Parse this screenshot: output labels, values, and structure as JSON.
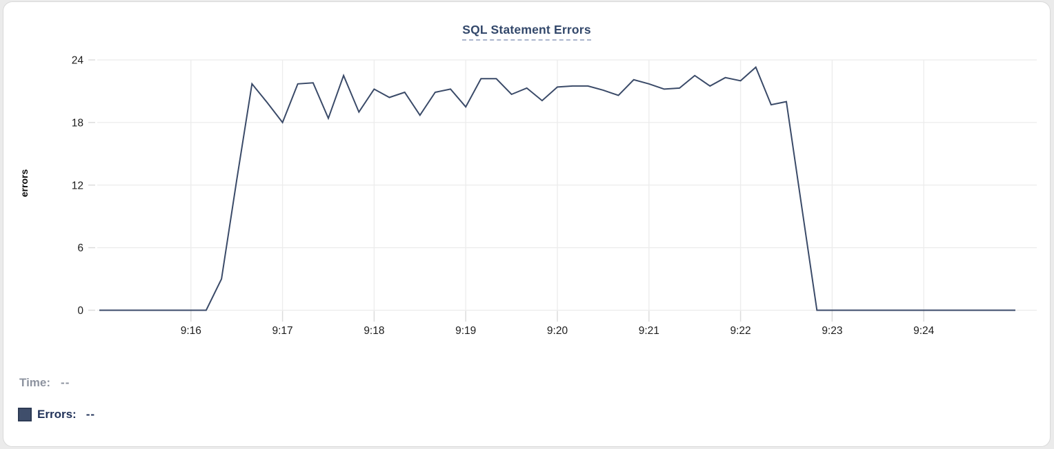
{
  "chart_data": {
    "type": "line",
    "title": "SQL Statement Errors",
    "xlabel": "",
    "ylabel": "errors",
    "ylim": [
      0,
      24
    ],
    "y_ticks": [
      0,
      6,
      12,
      18,
      24
    ],
    "x_tick_labels": [
      "9:16",
      "9:17",
      "9:18",
      "9:19",
      "9:20",
      "9:21",
      "9:22",
      "9:23",
      "9:24"
    ],
    "x_start_time": "9:15:00",
    "x_end_time": "9:25:00",
    "interval_seconds": 10,
    "grid": true,
    "legend_position": "bottom-left",
    "line_color": "#3a4a68",
    "series": [
      {
        "name": "Errors",
        "values": [
          0,
          0,
          0,
          0,
          0,
          0,
          0,
          0,
          3,
          12.5,
          21.7,
          19.9,
          18,
          21.7,
          21.8,
          18.4,
          22.5,
          19,
          21.2,
          20.4,
          20.9,
          18.7,
          20.9,
          21.2,
          19.5,
          22.2,
          22.2,
          20.7,
          21.3,
          20.1,
          21.4,
          21.5,
          21.5,
          21.1,
          20.6,
          22.1,
          21.7,
          21.2,
          21.3,
          22.5,
          21.5,
          22.3,
          22,
          23.3,
          19.7,
          20,
          10,
          0,
          0,
          0,
          0,
          0,
          0,
          0,
          0,
          0,
          0,
          0,
          0,
          0,
          0
        ]
      }
    ]
  },
  "tooltip": {
    "time_label": "Time:",
    "time_value": "--",
    "errors_label": "Errors:",
    "errors_value": "--"
  },
  "colors": {
    "line": "#3a4a68",
    "swatch_fill": "#3f4e6b",
    "swatch_border": "#2d3b55",
    "title": "#33486b",
    "grid": "#ececec",
    "tick": "#dcdcdc",
    "axis_text": "#1c1c1c",
    "time_text": "#8d939f",
    "errors_text": "#22335a"
  }
}
